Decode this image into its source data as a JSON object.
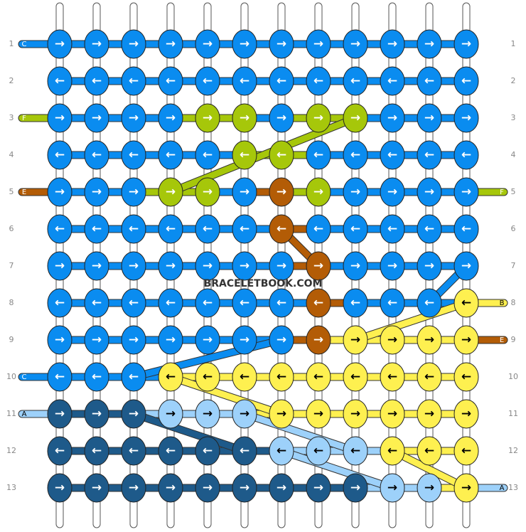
{
  "watermark": "BRACELETBOOK.COM",
  "palette": {
    "B": {
      "fill": "#0a8cf0",
      "text": "#ffffff"
    },
    "F": {
      "fill": "#a6c70a",
      "text": "#ffffff"
    },
    "E": {
      "fill": "#b35c06",
      "text": "#ffffff"
    },
    "Y": {
      "fill": "#fef050",
      "text": "#000000"
    },
    "L": {
      "fill": "#9dd1fa",
      "text": "#000000"
    },
    "D": {
      "fill": "#1e5a8a",
      "text": "#ffffff"
    }
  },
  "rows": [
    {
      "label": "1",
      "arrow": "→",
      "knots": [
        "B",
        "B",
        "B",
        "B",
        "B",
        "B",
        "B",
        "B",
        "B",
        "B",
        "B",
        "B"
      ],
      "left": {
        "label": "C",
        "color": "B"
      },
      "right": null
    },
    {
      "label": "2",
      "arrow": "←",
      "knots": [
        "B",
        "B",
        "B",
        "B",
        "B",
        "B",
        "B",
        "B",
        "B",
        "B",
        "B",
        "B"
      ],
      "left": null,
      "right": null
    },
    {
      "label": "3",
      "arrow": "→",
      "knots": [
        "B",
        "B",
        "B",
        "B",
        "F",
        "F",
        "B",
        "F",
        "F",
        "B",
        "B",
        "B"
      ],
      "left": {
        "label": "F",
        "color": "F"
      },
      "right": null
    },
    {
      "label": "4",
      "arrow": "←",
      "knots": [
        "B",
        "B",
        "B",
        "B",
        "B",
        "F",
        "F",
        "B",
        "B",
        "B",
        "B",
        "B"
      ],
      "left": null,
      "right": null
    },
    {
      "label": "5",
      "arrow": "→",
      "knots": [
        "B",
        "B",
        "B",
        "F",
        "F",
        "B",
        "E",
        "F",
        "B",
        "B",
        "B",
        "B"
      ],
      "left": {
        "label": "E",
        "color": "E"
      },
      "right": {
        "label": "F",
        "color": "F"
      }
    },
    {
      "label": "6",
      "arrow": "←",
      "knots": [
        "B",
        "B",
        "B",
        "B",
        "B",
        "B",
        "E",
        "B",
        "B",
        "B",
        "B",
        "B"
      ],
      "left": null,
      "right": null
    },
    {
      "label": "7",
      "arrow": "→",
      "knots": [
        "B",
        "B",
        "B",
        "B",
        "B",
        "B",
        "B",
        "E",
        "B",
        "B",
        "B",
        "B"
      ],
      "left": null,
      "right": null
    },
    {
      "label": "8",
      "arrow": "←",
      "knots": [
        "B",
        "B",
        "B",
        "B",
        "B",
        "B",
        "B",
        "E",
        "B",
        "B",
        "B",
        "Y"
      ],
      "left": null,
      "right": {
        "label": "B",
        "color": "Y"
      }
    },
    {
      "label": "9",
      "arrow": "→",
      "knots": [
        "B",
        "B",
        "B",
        "B",
        "B",
        "B",
        "B",
        "E",
        "Y",
        "Y",
        "Y",
        "Y"
      ],
      "left": null,
      "right": {
        "label": "E",
        "color": "E"
      }
    },
    {
      "label": "10",
      "arrow": "←",
      "knots": [
        "B",
        "B",
        "B",
        "Y",
        "Y",
        "Y",
        "Y",
        "Y",
        "Y",
        "Y",
        "Y",
        "Y"
      ],
      "left": {
        "label": "C",
        "color": "B"
      },
      "right": null
    },
    {
      "label": "11",
      "arrow": "→",
      "knots": [
        "D",
        "D",
        "D",
        "L",
        "L",
        "L",
        "Y",
        "Y",
        "Y",
        "Y",
        "Y",
        "Y"
      ],
      "left": {
        "label": "A",
        "color": "L"
      },
      "right": null
    },
    {
      "label": "12",
      "arrow": "←",
      "knots": [
        "D",
        "D",
        "D",
        "D",
        "D",
        "D",
        "L",
        "L",
        "L",
        "Y",
        "Y",
        "Y"
      ],
      "left": null,
      "right": null
    },
    {
      "label": "13",
      "arrow": "→",
      "knots": [
        "D",
        "D",
        "D",
        "D",
        "D",
        "D",
        "D",
        "D",
        "D",
        "L",
        "L",
        "Y"
      ],
      "left": null,
      "right": {
        "label": "A",
        "color": "L"
      }
    }
  ]
}
